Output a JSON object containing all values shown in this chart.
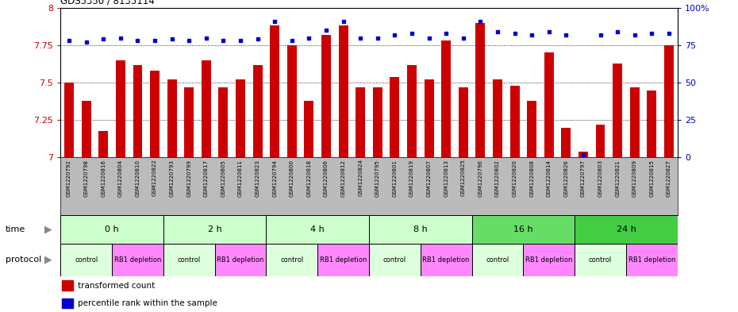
{
  "title": "GDS5350 / 8135114",
  "samples": [
    "GSM1220792",
    "GSM1220798",
    "GSM1220816",
    "GSM1220804",
    "GSM1220810",
    "GSM1220822",
    "GSM1220793",
    "GSM1220799",
    "GSM1220817",
    "GSM1220805",
    "GSM1220811",
    "GSM1220823",
    "GSM1220794",
    "GSM1220800",
    "GSM1220818",
    "GSM1220806",
    "GSM1220812",
    "GSM1220824",
    "GSM1220795",
    "GSM1220801",
    "GSM1220819",
    "GSM1220807",
    "GSM1220813",
    "GSM1220825",
    "GSM1220796",
    "GSM1220802",
    "GSM1220820",
    "GSM1220808",
    "GSM1220814",
    "GSM1220826",
    "GSM1220797",
    "GSM1220803",
    "GSM1220821",
    "GSM1220809",
    "GSM1220815",
    "GSM1220827"
  ],
  "red_values": [
    7.5,
    7.38,
    7.18,
    7.65,
    7.62,
    7.58,
    7.52,
    7.47,
    7.65,
    7.47,
    7.52,
    7.62,
    7.88,
    7.75,
    7.38,
    7.82,
    7.88,
    7.47,
    7.47,
    7.54,
    7.62,
    7.52,
    7.78,
    7.47,
    7.9,
    7.52,
    7.48,
    7.38,
    7.7,
    7.2,
    7.04,
    7.22,
    7.63,
    7.47,
    7.45,
    7.75
  ],
  "blue_values": [
    78,
    77,
    79,
    80,
    78,
    78,
    79,
    78,
    80,
    78,
    78,
    79,
    91,
    78,
    80,
    85,
    91,
    80,
    80,
    82,
    83,
    80,
    83,
    80,
    91,
    84,
    83,
    82,
    84,
    82,
    2,
    82,
    84,
    82,
    83,
    83
  ],
  "time_groups": [
    {
      "label": "0 h",
      "start": 0,
      "end": 6,
      "color": "#ccffcc"
    },
    {
      "label": "2 h",
      "start": 6,
      "end": 12,
      "color": "#ccffcc"
    },
    {
      "label": "4 h",
      "start": 12,
      "end": 18,
      "color": "#ccffcc"
    },
    {
      "label": "8 h",
      "start": 18,
      "end": 24,
      "color": "#ccffcc"
    },
    {
      "label": "16 h",
      "start": 24,
      "end": 30,
      "color": "#66dd66"
    },
    {
      "label": "24 h",
      "start": 30,
      "end": 36,
      "color": "#44cc44"
    }
  ],
  "protocol_groups": [
    {
      "label": "control",
      "start": 0,
      "end": 3,
      "color": "#ddffdd"
    },
    {
      "label": "RB1 depletion",
      "start": 3,
      "end": 6,
      "color": "#ff88ff"
    },
    {
      "label": "control",
      "start": 6,
      "end": 9,
      "color": "#ddffdd"
    },
    {
      "label": "RB1 depletion",
      "start": 9,
      "end": 12,
      "color": "#ff88ff"
    },
    {
      "label": "control",
      "start": 12,
      "end": 15,
      "color": "#ddffdd"
    },
    {
      "label": "RB1 depletion",
      "start": 15,
      "end": 18,
      "color": "#ff88ff"
    },
    {
      "label": "control",
      "start": 18,
      "end": 21,
      "color": "#ddffdd"
    },
    {
      "label": "RB1 depletion",
      "start": 21,
      "end": 24,
      "color": "#ff88ff"
    },
    {
      "label": "control",
      "start": 24,
      "end": 27,
      "color": "#ddffdd"
    },
    {
      "label": "RB1 depletion",
      "start": 27,
      "end": 30,
      "color": "#ff88ff"
    },
    {
      "label": "control",
      "start": 30,
      "end": 33,
      "color": "#ddffdd"
    },
    {
      "label": "RB1 depletion",
      "start": 33,
      "end": 36,
      "color": "#ff88ff"
    }
  ],
  "ylim_left": [
    7.0,
    8.0
  ],
  "ylim_right": [
    0,
    100
  ],
  "yticks_left": [
    7.0,
    7.25,
    7.5,
    7.75,
    8.0
  ],
  "ytick_labels_left": [
    "7",
    "7.25",
    "7.5",
    "7.75",
    "8"
  ],
  "yticks_right": [
    0,
    25,
    50,
    75,
    100
  ],
  "ytick_labels_right": [
    "0",
    "25",
    "50",
    "75",
    "100%"
  ],
  "bar_color": "#cc0000",
  "dot_color": "#0000cc",
  "label_row_bg": "#bbbbbb",
  "chart_bg": "#ffffff"
}
